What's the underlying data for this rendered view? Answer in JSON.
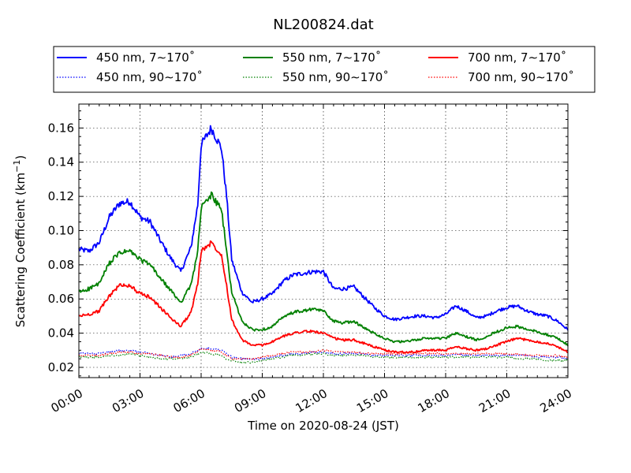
{
  "chart_data": {
    "type": "line",
    "title": "NL200824.dat",
    "xlabel": "Time on 2020-08-24 (JST)",
    "ylabel_main": "Scattering Coefficient (km",
    "ylabel_sup": "−1",
    "ylabel_end": ")",
    "xlim": [
      "00:00",
      "24:00"
    ],
    "ylim": [
      0.014,
      0.174
    ],
    "x_ticks": [
      "00:00",
      "03:00",
      "06:00",
      "09:00",
      "12:00",
      "15:00",
      "18:00",
      "21:00",
      "24:00"
    ],
    "y_ticks": [
      "0.02",
      "0.04",
      "0.06",
      "0.08",
      "0.10",
      "0.12",
      "0.14",
      "0.16"
    ],
    "y_tick_values": [
      0.02,
      0.04,
      0.06,
      0.08,
      0.1,
      0.12,
      0.14,
      0.16
    ],
    "grid": true,
    "legend_placement": "top (above plot), 3 columns",
    "x": [
      "00:00",
      "00:30",
      "01:00",
      "01:30",
      "02:00",
      "02:30",
      "03:00",
      "03:30",
      "04:00",
      "04:30",
      "05:00",
      "05:30",
      "05:50",
      "06:00",
      "06:30",
      "07:00",
      "07:15",
      "07:30",
      "08:00",
      "08:30",
      "09:00",
      "09:30",
      "10:00",
      "10:30",
      "11:00",
      "11:30",
      "12:00",
      "12:30",
      "13:00",
      "13:30",
      "14:00",
      "14:30",
      "15:00",
      "15:30",
      "16:00",
      "16:30",
      "17:00",
      "17:30",
      "18:00",
      "18:30",
      "19:00",
      "19:30",
      "20:00",
      "20:30",
      "21:00",
      "21:30",
      "22:00",
      "22:30",
      "23:00",
      "23:30",
      "24:00"
    ],
    "series": [
      {
        "name": "450 nm, 7∼170˚",
        "color": "#0000ff",
        "style": "solid",
        "values": [
          0.089,
          0.088,
          0.093,
          0.108,
          0.116,
          0.117,
          0.108,
          0.105,
          0.094,
          0.084,
          0.076,
          0.09,
          0.115,
          0.15,
          0.16,
          0.148,
          0.12,
          0.083,
          0.064,
          0.058,
          0.06,
          0.063,
          0.07,
          0.074,
          0.075,
          0.076,
          0.076,
          0.066,
          0.066,
          0.067,
          0.061,
          0.055,
          0.05,
          0.048,
          0.049,
          0.05,
          0.05,
          0.049,
          0.051,
          0.056,
          0.053,
          0.049,
          0.05,
          0.053,
          0.055,
          0.056,
          0.053,
          0.051,
          0.05,
          0.047,
          0.042
        ]
      },
      {
        "name": "550 nm, 7∼170˚",
        "color": "#008000",
        "style": "solid",
        "values": [
          0.064,
          0.066,
          0.069,
          0.081,
          0.087,
          0.088,
          0.083,
          0.08,
          0.072,
          0.065,
          0.058,
          0.068,
          0.088,
          0.113,
          0.121,
          0.112,
          0.088,
          0.064,
          0.047,
          0.042,
          0.042,
          0.044,
          0.049,
          0.052,
          0.053,
          0.054,
          0.053,
          0.047,
          0.046,
          0.047,
          0.043,
          0.04,
          0.037,
          0.035,
          0.035,
          0.036,
          0.037,
          0.037,
          0.037,
          0.04,
          0.038,
          0.036,
          0.038,
          0.041,
          0.043,
          0.044,
          0.042,
          0.041,
          0.039,
          0.037,
          0.033
        ]
      },
      {
        "name": "700 nm, 7∼170˚",
        "color": "#ff0000",
        "style": "solid",
        "values": [
          0.05,
          0.051,
          0.053,
          0.062,
          0.068,
          0.068,
          0.063,
          0.061,
          0.055,
          0.049,
          0.044,
          0.052,
          0.069,
          0.088,
          0.093,
          0.086,
          0.068,
          0.048,
          0.036,
          0.033,
          0.033,
          0.035,
          0.038,
          0.04,
          0.041,
          0.041,
          0.04,
          0.037,
          0.036,
          0.036,
          0.034,
          0.032,
          0.03,
          0.029,
          0.029,
          0.029,
          0.03,
          0.03,
          0.03,
          0.032,
          0.031,
          0.03,
          0.031,
          0.033,
          0.035,
          0.037,
          0.036,
          0.035,
          0.034,
          0.032,
          0.029
        ]
      },
      {
        "name": "450 nm, 90∼170˚",
        "color": "#0000ff",
        "style": "dotted",
        "values": [
          0.028,
          0.028,
          0.028,
          0.029,
          0.03,
          0.03,
          0.029,
          0.028,
          0.027,
          0.026,
          0.027,
          0.028,
          0.03,
          0.031,
          0.031,
          0.03,
          0.028,
          0.026,
          0.025,
          0.025,
          0.025,
          0.026,
          0.027,
          0.028,
          0.028,
          0.029,
          0.029,
          0.028,
          0.028,
          0.028,
          0.028,
          0.027,
          0.027,
          0.027,
          0.027,
          0.027,
          0.027,
          0.027,
          0.027,
          0.028,
          0.027,
          0.027,
          0.027,
          0.027,
          0.027,
          0.027,
          0.027,
          0.026,
          0.026,
          0.026,
          0.025
        ]
      },
      {
        "name": "550 nm, 90∼170˚",
        "color": "#008000",
        "style": "dotted",
        "values": [
          0.026,
          0.026,
          0.026,
          0.027,
          0.027,
          0.028,
          0.027,
          0.026,
          0.025,
          0.025,
          0.025,
          0.026,
          0.028,
          0.029,
          0.028,
          0.027,
          0.025,
          0.024,
          0.023,
          0.023,
          0.024,
          0.025,
          0.026,
          0.027,
          0.027,
          0.028,
          0.028,
          0.027,
          0.027,
          0.027,
          0.027,
          0.026,
          0.026,
          0.026,
          0.026,
          0.026,
          0.026,
          0.026,
          0.026,
          0.026,
          0.026,
          0.026,
          0.026,
          0.026,
          0.026,
          0.025,
          0.025,
          0.025,
          0.024,
          0.024,
          0.024
        ]
      },
      {
        "name": "700 nm, 90∼170˚",
        "color": "#ff0000",
        "style": "dotted",
        "values": [
          0.027,
          0.027,
          0.027,
          0.028,
          0.029,
          0.029,
          0.028,
          0.028,
          0.027,
          0.026,
          0.026,
          0.027,
          0.029,
          0.031,
          0.03,
          0.029,
          0.027,
          0.025,
          0.025,
          0.025,
          0.026,
          0.027,
          0.028,
          0.029,
          0.029,
          0.029,
          0.03,
          0.029,
          0.029,
          0.029,
          0.028,
          0.028,
          0.028,
          0.028,
          0.028,
          0.028,
          0.028,
          0.028,
          0.028,
          0.028,
          0.028,
          0.028,
          0.028,
          0.028,
          0.028,
          0.028,
          0.027,
          0.027,
          0.027,
          0.027,
          0.026
        ]
      }
    ]
  }
}
